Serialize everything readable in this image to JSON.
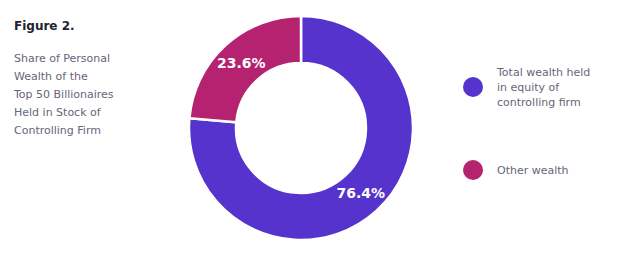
{
  "chart_data": {
    "type": "pie",
    "title": "Figure 2.",
    "subtitle": "Share of Personal\nWealth of the\nTop 50 Billionaires\nHeld in Stock of\nControlling Firm",
    "categories": [
      "Total wealth held\nin equity of\ncontrolling firm",
      "Other wealth"
    ],
    "values": [
      76.4,
      23.6
    ],
    "value_labels": [
      "76.4%",
      "23.6%"
    ],
    "colors": [
      "#5533CC",
      "#B52270"
    ],
    "data_labels": true,
    "legend": "right"
  }
}
